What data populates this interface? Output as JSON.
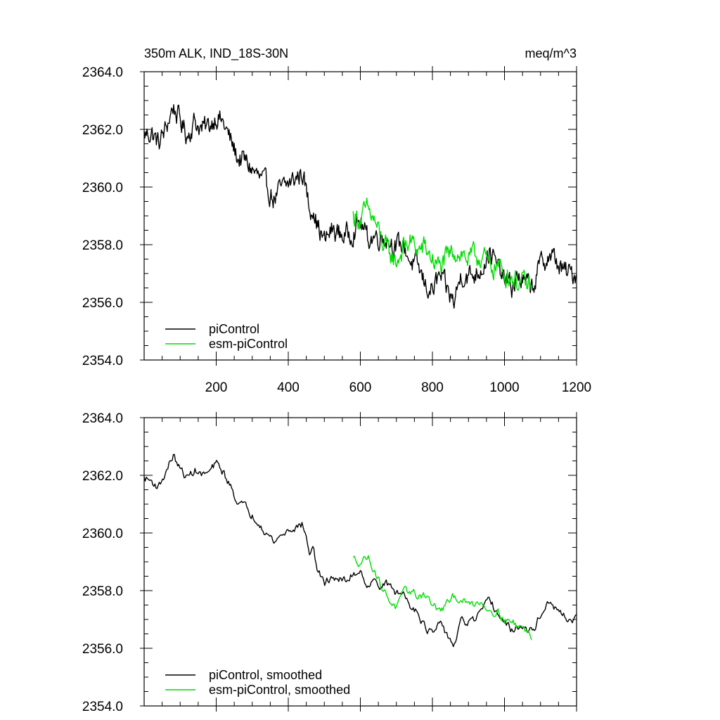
{
  "chart_data": [
    {
      "type": "line",
      "title": "350m ALK, IND_18S-30N",
      "units": "meq/m^3",
      "xlim": [
        0,
        1200
      ],
      "ylim": [
        2354,
        2364
      ],
      "yticks": [
        "2354.0",
        "2356.0",
        "2358.0",
        "2360.0",
        "2362.0",
        "2364.0"
      ],
      "xticks": [
        "200",
        "400",
        "600",
        "800",
        "1000",
        "1200"
      ],
      "legend_position": "bottom-left",
      "series": [
        {
          "name": "piControl",
          "color": "#000000",
          "x": [
            0,
            20,
            40,
            60,
            80,
            100,
            120,
            140,
            160,
            180,
            200,
            220,
            240,
            260,
            280,
            300,
            320,
            340,
            360,
            380,
            400,
            420,
            440,
            460,
            470,
            480,
            500,
            520,
            540,
            560,
            580,
            600,
            620,
            640,
            660,
            680,
            700,
            720,
            740,
            760,
            780,
            800,
            820,
            840,
            860,
            880,
            900,
            920,
            940,
            960,
            980,
            1000,
            1020,
            1040,
            1060,
            1080,
            1100,
            1120,
            1140,
            1160,
            1180,
            1200
          ],
          "y": [
            2361.8,
            2361.9,
            2361.5,
            2362.0,
            2362.8,
            2362.3,
            2361.8,
            2362.3,
            2362.0,
            2362.1,
            2362.5,
            2362.2,
            2361.6,
            2361.0,
            2360.9,
            2360.6,
            2360.3,
            2360.0,
            2359.6,
            2359.9,
            2360.1,
            2360.3,
            2360.5,
            2359.2,
            2359.4,
            2358.7,
            2358.1,
            2358.5,
            2358.4,
            2358.3,
            2358.5,
            2358.8,
            2358.2,
            2358.3,
            2358.3,
            2358.2,
            2357.9,
            2358.0,
            2357.4,
            2357.2,
            2356.6,
            2356.4,
            2356.9,
            2356.4,
            2356.0,
            2357.0,
            2356.9,
            2357.0,
            2357.3,
            2357.8,
            2357.2,
            2356.8,
            2356.5,
            2356.9,
            2356.6,
            2356.6,
            2357.3,
            2357.6,
            2357.5,
            2357.1,
            2357.0,
            2357.0
          ]
        },
        {
          "name": "esm-piControl",
          "color": "#00dd00",
          "x": [
            580,
            600,
            620,
            640,
            660,
            680,
            700,
            720,
            740,
            760,
            780,
            800,
            820,
            840,
            860,
            880,
            900,
            920,
            940,
            960,
            980,
            1000,
            1020,
            1040,
            1060,
            1075
          ],
          "y": [
            2359.0,
            2358.9,
            2359.2,
            2358.8,
            2358.1,
            2357.7,
            2357.4,
            2357.9,
            2358.1,
            2357.8,
            2357.9,
            2357.5,
            2357.2,
            2357.5,
            2357.8,
            2357.7,
            2357.5,
            2357.6,
            2357.6,
            2357.2,
            2357.3,
            2357.0,
            2356.9,
            2356.7,
            2356.6,
            2356.5
          ]
        }
      ]
    },
    {
      "type": "line",
      "xlim": [
        0,
        1200
      ],
      "ylim": [
        2354,
        2364
      ],
      "yticks": [
        "2354.0",
        "2356.0",
        "2358.0",
        "2360.0",
        "2362.0",
        "2364.0"
      ],
      "legend_position": "bottom-left",
      "series": [
        {
          "name": "piControl, smoothed",
          "color": "#000000",
          "x": [
            0,
            20,
            40,
            60,
            80,
            100,
            120,
            140,
            160,
            180,
            200,
            220,
            240,
            260,
            280,
            300,
            320,
            340,
            360,
            380,
            400,
            420,
            440,
            460,
            470,
            480,
            500,
            520,
            540,
            560,
            580,
            600,
            620,
            640,
            660,
            680,
            700,
            720,
            740,
            760,
            780,
            800,
            820,
            840,
            860,
            880,
            900,
            920,
            940,
            960,
            980,
            1000,
            1020,
            1040,
            1060,
            1080,
            1100,
            1120,
            1140,
            1160,
            1180,
            1200
          ],
          "y": [
            2361.9,
            2361.8,
            2361.6,
            2362.1,
            2362.7,
            2362.2,
            2361.9,
            2362.2,
            2362.0,
            2362.1,
            2362.4,
            2362.1,
            2361.6,
            2361.1,
            2360.9,
            2360.6,
            2360.4,
            2360.0,
            2359.7,
            2359.9,
            2360.1,
            2360.2,
            2360.3,
            2359.3,
            2359.4,
            2358.8,
            2358.2,
            2358.5,
            2358.4,
            2358.3,
            2358.6,
            2358.7,
            2358.2,
            2358.3,
            2358.2,
            2358.2,
            2357.9,
            2357.9,
            2357.5,
            2357.3,
            2356.7,
            2356.5,
            2356.8,
            2356.5,
            2356.1,
            2356.9,
            2356.9,
            2357.0,
            2357.3,
            2357.7,
            2357.2,
            2356.9,
            2356.6,
            2356.8,
            2356.6,
            2356.6,
            2357.2,
            2357.5,
            2357.4,
            2357.1,
            2357.0,
            2357.0
          ]
        },
        {
          "name": "esm-piControl, smoothed",
          "color": "#00dd00",
          "x": [
            580,
            600,
            620,
            640,
            660,
            680,
            700,
            720,
            740,
            760,
            780,
            800,
            820,
            840,
            860,
            880,
            900,
            920,
            940,
            960,
            980,
            1000,
            1020,
            1040,
            1060,
            1075
          ],
          "y": [
            2359.1,
            2359.0,
            2359.2,
            2358.7,
            2358.1,
            2357.7,
            2357.4,
            2357.9,
            2358.0,
            2357.8,
            2357.9,
            2357.5,
            2357.3,
            2357.5,
            2357.8,
            2357.7,
            2357.5,
            2357.6,
            2357.6,
            2357.3,
            2357.3,
            2357.0,
            2356.9,
            2356.8,
            2356.6,
            2356.4
          ]
        }
      ]
    }
  ]
}
